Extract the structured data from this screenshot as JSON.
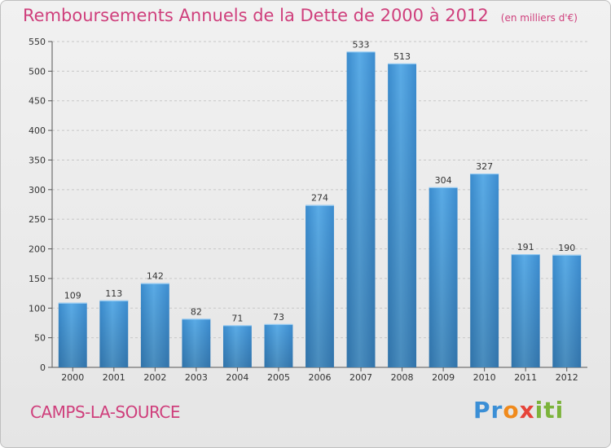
{
  "chart_data": {
    "type": "bar",
    "title": "Remboursements Annuels de la Dette de 2000 à 2012",
    "unit_note": "(en milliers d'€)",
    "categories": [
      "2000",
      "2001",
      "2002",
      "2003",
      "2004",
      "2005",
      "2006",
      "2007",
      "2008",
      "2009",
      "2010",
      "2011",
      "2012"
    ],
    "values": [
      109,
      113,
      142,
      82,
      71,
      73,
      274,
      533,
      513,
      304,
      327,
      191,
      190
    ],
    "ylim": [
      0,
      550
    ],
    "yticks": [
      0,
      50,
      100,
      150,
      200,
      250,
      300,
      350,
      400,
      450,
      500,
      550
    ],
    "grid": true,
    "bar_color": "#4a9ad8",
    "title_color": "#cf3f7c"
  },
  "footer": {
    "commune": "CAMPS-LA-SOURCE",
    "logo_text": "Proxiti"
  }
}
